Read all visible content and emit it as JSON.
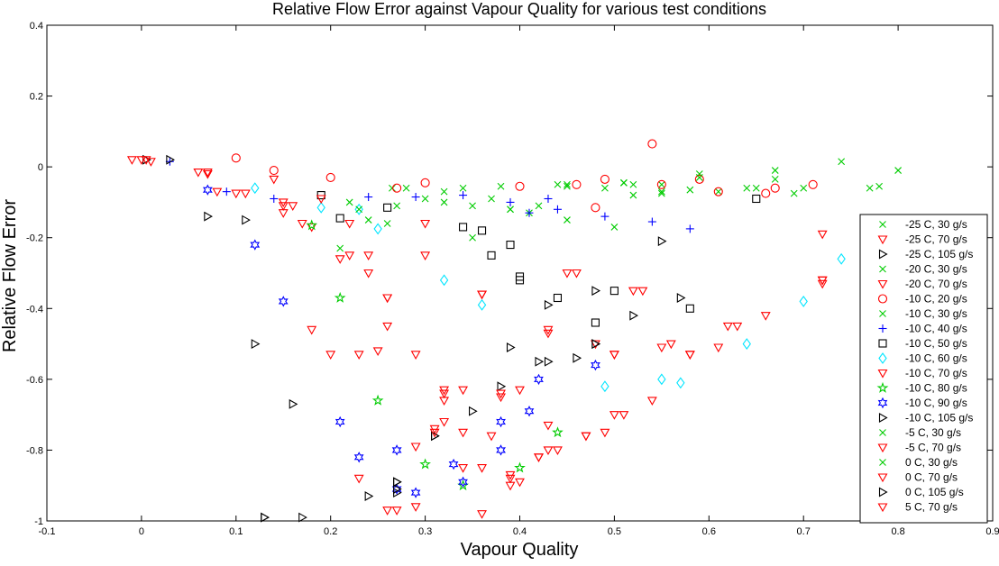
{
  "chart_data": {
    "type": "scatter",
    "title": "Relative Flow Error against Vapour Quality for various test conditions",
    "xlabel": "Vapour Quality",
    "ylabel": "Relative Flow Error",
    "xlim": [
      -0.1,
      0.9
    ],
    "ylim": [
      -1,
      0.4
    ],
    "xticks": [
      "-0.1",
      "0",
      "0.1",
      "0.2",
      "0.3",
      "0.4",
      "0.5",
      "0.6",
      "0.7",
      "0.8",
      "0.9"
    ],
    "yticks": [
      "-1",
      "-0.8",
      "-0.6",
      "-0.4",
      "-0.2",
      "0",
      "0.2",
      "0.4"
    ],
    "grid": false,
    "legend_position": "bottom-right",
    "series": [
      {
        "name": "-25 C, 30 g/s",
        "marker": "x",
        "color": "#00cc00",
        "points": [
          [
            0.22,
            -0.1
          ],
          [
            0.265,
            -0.06
          ],
          [
            0.32,
            -0.07
          ],
          [
            0.35,
            -0.11
          ],
          [
            0.39,
            -0.12
          ],
          [
            0.42,
            -0.11
          ],
          [
            0.49,
            -0.06
          ],
          [
            0.52,
            -0.05
          ],
          [
            0.55,
            -0.07
          ],
          [
            0.59,
            -0.02
          ],
          [
            0.65,
            -0.06
          ],
          [
            0.7,
            -0.06
          ],
          [
            0.77,
            -0.06
          ]
        ]
      },
      {
        "name": "-25 C, 70 g/s",
        "marker": "triangle-down",
        "color": "#ff0000",
        "points": [
          [
            -0.01,
            0.02
          ],
          [
            0.07,
            -0.02
          ],
          [
            0.1,
            -0.075
          ],
          [
            0.15,
            -0.1
          ],
          [
            0.17,
            -0.16
          ],
          [
            0.21,
            -0.26
          ],
          [
            0.24,
            -0.3
          ],
          [
            0.26,
            -0.37
          ],
          [
            0.3,
            -0.25
          ],
          [
            0.32,
            -0.66
          ],
          [
            0.34,
            -0.75
          ],
          [
            0.36,
            -0.85
          ],
          [
            0.39,
            -0.87
          ],
          [
            0.42,
            -0.82
          ],
          [
            0.43,
            -0.47
          ],
          [
            0.45,
            -0.3
          ],
          [
            0.48,
            -0.5
          ],
          [
            0.53,
            -0.35
          ],
          [
            0.56,
            -0.5
          ],
          [
            0.62,
            -0.45
          ],
          [
            0.72,
            -0.32
          ]
        ]
      },
      {
        "name": "-25 C, 105 g/s",
        "marker": "triangle-right",
        "color": "#000000",
        "points": [
          [
            0.005,
            0.02
          ],
          [
            0.07,
            -0.14
          ],
          [
            0.12,
            -0.5
          ],
          [
            0.16,
            -0.67
          ],
          [
            0.24,
            -0.93
          ],
          [
            0.27,
            -0.92
          ],
          [
            0.31,
            -0.76
          ],
          [
            0.35,
            -0.69
          ],
          [
            0.39,
            -0.51
          ],
          [
            0.43,
            -0.39
          ],
          [
            0.48,
            -0.35
          ],
          [
            0.52,
            -0.42
          ],
          [
            0.57,
            -0.37
          ]
        ]
      },
      {
        "name": "-20 C, 30 g/s",
        "marker": "x",
        "color": "#00cc00",
        "points": [
          [
            0.27,
            -0.11
          ],
          [
            0.34,
            -0.06
          ],
          [
            0.41,
            -0.13
          ],
          [
            0.45,
            -0.15
          ],
          [
            0.5,
            -0.17
          ],
          [
            0.55,
            -0.05
          ],
          [
            0.61,
            -0.07
          ],
          [
            0.67,
            -0.01
          ]
        ]
      },
      {
        "name": "-20 C, 70 g/s",
        "marker": "triangle-down",
        "color": "#ff0000",
        "points": [
          [
            0.06,
            -0.015
          ],
          [
            0.15,
            -0.13
          ],
          [
            0.18,
            -0.46
          ],
          [
            0.2,
            -0.53
          ],
          [
            0.25,
            -0.52
          ],
          [
            0.29,
            -0.53
          ],
          [
            0.32,
            -0.63
          ],
          [
            0.34,
            -0.63
          ],
          [
            0.36,
            -0.36
          ],
          [
            0.38,
            -0.65
          ],
          [
            0.4,
            -0.89
          ],
          [
            0.43,
            -0.73
          ],
          [
            0.47,
            -0.76
          ],
          [
            0.5,
            -0.53
          ],
          [
            0.54,
            -0.66
          ],
          [
            0.58,
            -0.53
          ],
          [
            0.66,
            -0.42
          ],
          [
            0.72,
            -0.19
          ]
        ]
      },
      {
        "name": "-10 C, 20 g/s",
        "marker": "circle",
        "color": "#ff0000",
        "points": [
          [
            0.1,
            0.025
          ],
          [
            0.14,
            -0.01
          ],
          [
            0.2,
            -0.03
          ],
          [
            0.27,
            -0.06
          ],
          [
            0.3,
            -0.045
          ],
          [
            0.4,
            -0.055
          ],
          [
            0.46,
            -0.05
          ],
          [
            0.48,
            -0.115
          ],
          [
            0.49,
            -0.035
          ],
          [
            0.54,
            0.065
          ],
          [
            0.55,
            -0.05
          ],
          [
            0.59,
            -0.035
          ],
          [
            0.61,
            -0.07
          ],
          [
            0.66,
            -0.075
          ],
          [
            0.67,
            -0.06
          ],
          [
            0.71,
            -0.05
          ]
        ]
      },
      {
        "name": "-10 C, 30 g/s",
        "marker": "x",
        "color": "#00cc00",
        "points": [
          [
            0.24,
            -0.15
          ],
          [
            0.28,
            -0.06
          ],
          [
            0.32,
            -0.1
          ],
          [
            0.38,
            -0.055
          ],
          [
            0.44,
            -0.05
          ],
          [
            0.51,
            -0.045
          ],
          [
            0.58,
            -0.065
          ],
          [
            0.69,
            -0.075
          ],
          [
            0.74,
            0.015
          ],
          [
            0.8,
            -0.01
          ]
        ]
      },
      {
        "name": "-10 C, 40 g/s",
        "marker": "plus",
        "color": "#0000ff",
        "points": [
          [
            0.03,
            0.015
          ],
          [
            0.09,
            -0.07
          ],
          [
            0.14,
            -0.09
          ],
          [
            0.24,
            -0.085
          ],
          [
            0.29,
            -0.085
          ],
          [
            0.34,
            -0.08
          ],
          [
            0.39,
            -0.1
          ],
          [
            0.41,
            -0.13
          ],
          [
            0.43,
            -0.09
          ],
          [
            0.44,
            -0.12
          ],
          [
            0.49,
            -0.14
          ],
          [
            0.54,
            -0.155
          ],
          [
            0.58,
            -0.175
          ]
        ]
      },
      {
        "name": "-10 C, 50 g/s",
        "marker": "square",
        "color": "#000000",
        "points": [
          [
            0.19,
            -0.08
          ],
          [
            0.21,
            -0.145
          ],
          [
            0.26,
            -0.115
          ],
          [
            0.34,
            -0.17
          ],
          [
            0.36,
            -0.18
          ],
          [
            0.37,
            -0.25
          ],
          [
            0.39,
            -0.22
          ],
          [
            0.4,
            -0.32
          ],
          [
            0.4,
            -0.31
          ],
          [
            0.44,
            -0.37
          ],
          [
            0.48,
            -0.44
          ],
          [
            0.5,
            -0.35
          ],
          [
            0.58,
            -0.4
          ],
          [
            0.65,
            -0.09
          ]
        ]
      },
      {
        "name": "-10 C, 60 g/s",
        "marker": "diamond",
        "color": "#00e5ff",
        "points": [
          [
            0.12,
            -0.06
          ],
          [
            0.19,
            -0.115
          ],
          [
            0.23,
            -0.12
          ],
          [
            0.25,
            -0.175
          ],
          [
            0.32,
            -0.32
          ],
          [
            0.36,
            -0.39
          ],
          [
            0.49,
            -0.62
          ],
          [
            0.55,
            -0.6
          ],
          [
            0.57,
            -0.61
          ],
          [
            0.64,
            -0.5
          ],
          [
            0.7,
            -0.38
          ],
          [
            0.74,
            -0.26
          ]
        ]
      },
      {
        "name": "-10 C, 70 g/s",
        "marker": "triangle-down",
        "color": "#ff0000",
        "points": [
          [
            0.07,
            -0.015
          ],
          [
            0.14,
            -0.035
          ],
          [
            0.18,
            -0.17
          ],
          [
            0.22,
            -0.16
          ],
          [
            0.24,
            -0.25
          ],
          [
            0.26,
            -0.45
          ],
          [
            0.27,
            -0.97
          ],
          [
            0.29,
            -0.96
          ],
          [
            0.29,
            -0.79
          ],
          [
            0.31,
            -0.74
          ],
          [
            0.32,
            -0.64
          ],
          [
            0.34,
            -0.85
          ],
          [
            0.37,
            -0.76
          ],
          [
            0.4,
            -0.63
          ],
          [
            0.43,
            -0.8
          ],
          [
            0.47,
            -0.76
          ],
          [
            0.49,
            -0.75
          ],
          [
            0.5,
            -0.7
          ],
          [
            0.52,
            -0.35
          ],
          [
            0.61,
            -0.51
          ],
          [
            0.72,
            -0.32
          ]
        ]
      },
      {
        "name": "-10 C, 80 g/s",
        "marker": "star",
        "color": "#00cc00",
        "points": [
          [
            0.18,
            -0.165
          ],
          [
            0.21,
            -0.37
          ],
          [
            0.25,
            -0.66
          ],
          [
            0.3,
            -0.84
          ],
          [
            0.34,
            -0.9
          ],
          [
            0.4,
            -0.85
          ],
          [
            0.44,
            -0.75
          ]
        ]
      },
      {
        "name": "-10 C, 90 g/s",
        "marker": "hexagram",
        "color": "#0000ff",
        "points": [
          [
            0.07,
            -0.065
          ],
          [
            0.12,
            -0.22
          ],
          [
            0.15,
            -0.38
          ],
          [
            0.21,
            -0.72
          ],
          [
            0.23,
            -0.82
          ],
          [
            0.27,
            -0.8
          ],
          [
            0.27,
            -0.91
          ],
          [
            0.29,
            -0.92
          ],
          [
            0.33,
            -0.84
          ],
          [
            0.34,
            -0.89
          ],
          [
            0.38,
            -0.72
          ],
          [
            0.38,
            -0.8
          ],
          [
            0.41,
            -0.69
          ],
          [
            0.42,
            -0.6
          ],
          [
            0.48,
            -0.56
          ]
        ]
      },
      {
        "name": "-10 C, 105 g/s",
        "marker": "triangle-right",
        "color": "#000000",
        "points": [
          [
            0.11,
            -0.15
          ],
          [
            0.13,
            -0.99
          ],
          [
            0.17,
            -0.99
          ],
          [
            0.27,
            -0.89
          ],
          [
            0.27,
            -0.91
          ],
          [
            0.38,
            -0.62
          ],
          [
            0.43,
            -0.55
          ],
          [
            0.46,
            -0.54
          ],
          [
            0.48,
            -0.5
          ],
          [
            0.55,
            -0.21
          ]
        ]
      },
      {
        "name": "-5 C, 30 g/s",
        "marker": "x",
        "color": "#00cc00",
        "points": [
          [
            0.21,
            -0.23
          ],
          [
            0.26,
            -0.16
          ],
          [
            0.35,
            -0.2
          ],
          [
            0.39,
            -0.12
          ],
          [
            0.45,
            -0.055
          ],
          [
            0.52,
            -0.08
          ],
          [
            0.55,
            -0.075
          ],
          [
            0.78,
            -0.055
          ]
        ]
      },
      {
        "name": "-5 C, 70 g/s",
        "marker": "triangle-down",
        "color": "#ff0000",
        "points": [
          [
            0.0,
            0.02
          ],
          [
            0.16,
            -0.11
          ],
          [
            0.23,
            -0.53
          ],
          [
            0.26,
            -0.37
          ],
          [
            0.3,
            -0.16
          ],
          [
            0.36,
            -0.98
          ],
          [
            0.39,
            -0.88
          ],
          [
            0.42,
            -0.82
          ],
          [
            0.46,
            -0.3
          ],
          [
            0.5,
            -0.53
          ],
          [
            0.58,
            -0.53
          ]
        ]
      },
      {
        "name": "0 C, 30 g/s",
        "marker": "x",
        "color": "#00cc00",
        "points": [
          [
            0.23,
            -0.12
          ],
          [
            0.3,
            -0.09
          ],
          [
            0.37,
            -0.09
          ],
          [
            0.45,
            -0.05
          ],
          [
            0.51,
            -0.045
          ],
          [
            0.59,
            -0.03
          ],
          [
            0.64,
            -0.06
          ],
          [
            0.67,
            -0.035
          ]
        ]
      },
      {
        "name": "0 C, 70 g/s",
        "marker": "triangle-down",
        "color": "#ff0000",
        "points": [
          [
            0.01,
            0.015
          ],
          [
            0.08,
            -0.07
          ],
          [
            0.11,
            -0.075
          ],
          [
            0.19,
            -0.09
          ],
          [
            0.23,
            -0.88
          ],
          [
            0.26,
            -0.97
          ],
          [
            0.32,
            -0.72
          ],
          [
            0.36,
            -0.36
          ],
          [
            0.38,
            -0.64
          ],
          [
            0.43,
            -0.46
          ],
          [
            0.51,
            -0.7
          ],
          [
            0.63,
            -0.45
          ],
          [
            0.72,
            -0.33
          ]
        ]
      },
      {
        "name": "0 C, 105 g/s",
        "marker": "triangle-right",
        "color": "#000000",
        "points": [
          [
            0.03,
            0.02
          ],
          [
            0.13,
            -0.99
          ],
          [
            0.27,
            -0.89
          ],
          [
            0.31,
            -0.76
          ],
          [
            0.42,
            -0.55
          ],
          [
            0.48,
            -0.5
          ]
        ]
      },
      {
        "name": "5 C, 70 g/s",
        "marker": "triangle-down",
        "color": "#ff0000",
        "points": [
          [
            0.005,
            0.02
          ],
          [
            0.15,
            -0.11
          ],
          [
            0.22,
            -0.25
          ],
          [
            0.31,
            -0.75
          ],
          [
            0.39,
            -0.9
          ],
          [
            0.44,
            -0.8
          ],
          [
            0.55,
            -0.51
          ]
        ]
      }
    ]
  }
}
